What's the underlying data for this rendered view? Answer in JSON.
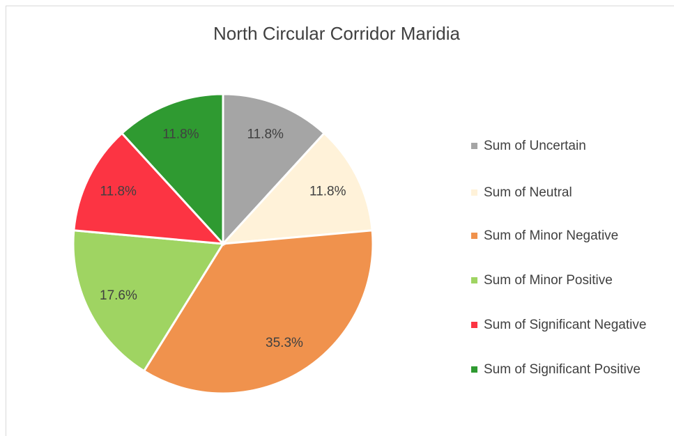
{
  "chart_data": {
    "type": "pie",
    "title": "North Circular Corridor Maridia",
    "categories": [
      "Sum of Uncertain",
      "Sum of Neutral",
      "Sum of Minor Negative",
      "Sum of Minor Positive",
      "Sum of Significant Negative",
      "Sum of Significant Positive"
    ],
    "values": [
      11.8,
      11.8,
      35.3,
      17.6,
      11.8,
      11.8
    ],
    "value_labels": [
      "11.8%",
      "11.8%",
      "35.3%",
      "17.6%",
      "11.8%",
      "11.8%"
    ],
    "colors": [
      "#a5a5a5",
      "#fff2d9",
      "#f0924d",
      "#9fd462",
      "#fc3443",
      "#2f9a31"
    ],
    "legend": "right"
  }
}
